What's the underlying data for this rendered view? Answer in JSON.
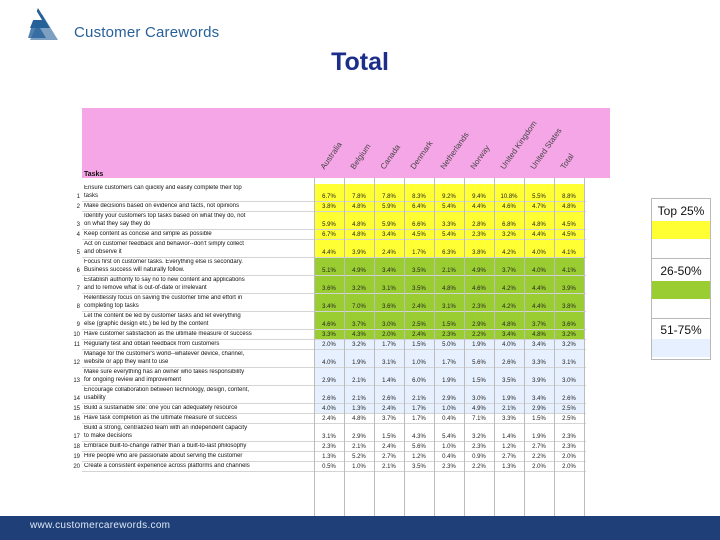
{
  "brand": {
    "name": "Customer Carewords"
  },
  "title": "Total",
  "countries": [
    "Australia",
    "Belgium",
    "Canada",
    "Denmark",
    "Netherlands",
    "Norway",
    "United Kingdom",
    "United States",
    "Total"
  ],
  "tasks_header": "Tasks",
  "rows": [
    {
      "num": "1",
      "text": [
        "Ensure customers can quickly and easily complete their top",
        "tasks"
      ],
      "values": [
        "6.7%",
        "7.8%",
        "7.8%",
        "8.3%",
        "9.2%",
        "9.4%",
        "10.8%",
        "5.5%",
        "8.8%"
      ]
    },
    {
      "num": "2",
      "text": [
        "Make decisions based on evidence and facts, not opinions"
      ],
      "values": [
        "3.8%",
        "4.8%",
        "5.9%",
        "6.4%",
        "5.4%",
        "4.4%",
        "4.6%",
        "4.7%",
        "4.8%"
      ]
    },
    {
      "num": "3",
      "text": [
        "Identify your customers top tasks based on what they do, not",
        "on what they say they do"
      ],
      "values": [
        "5.9%",
        "4.8%",
        "5.9%",
        "6.6%",
        "3.3%",
        "2.8%",
        "6.8%",
        "4.8%",
        "4.5%"
      ]
    },
    {
      "num": "4",
      "text": [
        "Keep content as concise and simple as possible"
      ],
      "values": [
        "6.7%",
        "4.8%",
        "3.4%",
        "4.5%",
        "5.4%",
        "2.3%",
        "3.2%",
        "4.4%",
        "4.5%"
      ]
    },
    {
      "num": "5",
      "text": [
        "Act on customer feedback and behavior--don't simply collect",
        "and observe it"
      ],
      "values": [
        "4.4%",
        "3.9%",
        "2.4%",
        "1.7%",
        "6.3%",
        "3.8%",
        "4.2%",
        "4.0%",
        "4.1%"
      ]
    },
    {
      "num": "6",
      "text": [
        "Focus first on customer tasks. Everything else is secondary.",
        "Business success will naturally follow."
      ],
      "values": [
        "5.1%",
        "4.9%",
        "3.4%",
        "3.5%",
        "2.1%",
        "4.9%",
        "3.7%",
        "4.0%",
        "4.1%"
      ]
    },
    {
      "num": "7",
      "text": [
        "Establish authority to say no to new content and applications",
        "and to remove what is out-of-date or irrelevant"
      ],
      "values": [
        "3.6%",
        "3.2%",
        "3.1%",
        "3.5%",
        "4.8%",
        "4.6%",
        "4.2%",
        "4.4%",
        "3.9%"
      ]
    },
    {
      "num": "8",
      "text": [
        "Relentlessly focus on saving the customer time and effort in",
        "completing top tasks"
      ],
      "values": [
        "3.4%",
        "7.0%",
        "3.6%",
        "2.4%",
        "3.1%",
        "2.3%",
        "4.2%",
        "4.4%",
        "3.8%"
      ]
    },
    {
      "num": "9",
      "text": [
        "Let the content be led by customer tasks and let everything",
        "else (graphic design etc.) be led by the content"
      ],
      "values": [
        "4.6%",
        "3.7%",
        "3.0%",
        "2.5%",
        "1.5%",
        "2.9%",
        "4.8%",
        "3.7%",
        "3.6%"
      ]
    },
    {
      "num": "10",
      "text": [
        "Have customer satisfaction as the ultimate measure of success"
      ],
      "values": [
        "3.3%",
        "4.3%",
        "2.0%",
        "2.4%",
        "2.3%",
        "2.2%",
        "3.4%",
        "4.8%",
        "3.2%"
      ]
    },
    {
      "num": "11",
      "text": [
        "Regularly test and obtain feedback from customers"
      ],
      "values": [
        "2.0%",
        "3.2%",
        "1.7%",
        "1.5%",
        "5.0%",
        "1.9%",
        "4.0%",
        "3.4%",
        "3.2%"
      ]
    },
    {
      "num": "12",
      "text": [
        "Manage for the customer's world--whatever device, channel,",
        "website or app they want to use"
      ],
      "values": [
        "4.0%",
        "1.9%",
        "3.1%",
        "1.0%",
        "1.7%",
        "5.6%",
        "2.6%",
        "3.3%",
        "3.1%"
      ]
    },
    {
      "num": "13",
      "text": [
        "Make sure everything has an owner who takes responsibility",
        "for ongoing review and improvement"
      ],
      "values": [
        "2.9%",
        "2.1%",
        "1.4%",
        "6.0%",
        "1.9%",
        "1.5%",
        "3.5%",
        "3.9%",
        "3.0%"
      ]
    },
    {
      "num": "14",
      "text": [
        "Encourage collaboration between technology, design, content,",
        "usability"
      ],
      "values": [
        "2.6%",
        "2.1%",
        "2.6%",
        "2.1%",
        "2.9%",
        "3.0%",
        "1.9%",
        "3.4%",
        "2.6%"
      ]
    },
    {
      "num": "15",
      "text": [
        "Build a sustainable site: one you can adequately resource"
      ],
      "values": [
        "4.0%",
        "1.3%",
        "2.4%",
        "1.7%",
        "1.0%",
        "4.9%",
        "2.1%",
        "2.9%",
        "2.5%"
      ]
    },
    {
      "num": "16",
      "text": [
        "Have task completion as the ultimate measure of success"
      ],
      "values": [
        "2.4%",
        "4.8%",
        "3.7%",
        "1.7%",
        "0.4%",
        "7.1%",
        "3.3%",
        "1.5%",
        "2.5%"
      ]
    },
    {
      "num": "17",
      "text": [
        "Build a strong, centralized team with an independent capacity",
        "to make decisions"
      ],
      "values": [
        "3.1%",
        "2.9%",
        "1.5%",
        "4.3%",
        "5.4%",
        "3.2%",
        "1.4%",
        "1.9%",
        "2.3%"
      ]
    },
    {
      "num": "18",
      "text": [
        "Embrace built-to-change rather than a built-to-last philosophy"
      ],
      "values": [
        "2.3%",
        "2.1%",
        "2.4%",
        "5.6%",
        "1.0%",
        "2.3%",
        "1.2%",
        "2.7%",
        "2.3%"
      ]
    },
    {
      "num": "19",
      "text": [
        "Hire people who are passionate about serving the customer"
      ],
      "values": [
        "1.3%",
        "5.2%",
        "2.7%",
        "1.2%",
        "0.4%",
        "0.9%",
        "2.7%",
        "2.2%",
        "2.0%"
      ]
    },
    {
      "num": "20",
      "text": [
        "Create a consistent experience across platforms and channels"
      ],
      "values": [
        "0.5%",
        "1.0%",
        "2.1%",
        "3.5%",
        "2.3%",
        "2.2%",
        "1.3%",
        "2.0%",
        "2.0%"
      ]
    }
  ],
  "legend": [
    {
      "label": "Top 25%",
      "color": "#ffff33"
    },
    {
      "label": "26-50%",
      "color": "#9acd32"
    },
    {
      "label": "51-75%",
      "color": "#e6f0ff"
    }
  ],
  "footer_url": "www.customercarewords.com"
}
